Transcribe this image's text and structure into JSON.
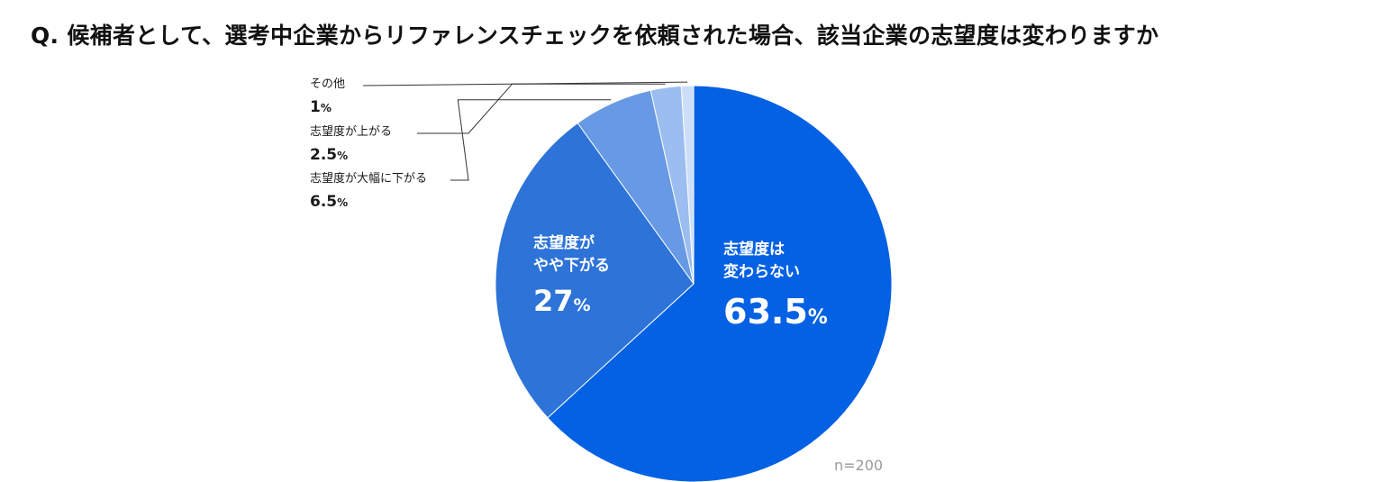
{
  "title": "Q. 候補者として、選考中企業からリファレンスチェックを依頼された場合、該当企業の志望度は変わりますか",
  "note": "n=200",
  "chart_data": {
    "type": "pie",
    "title": "Q. 候補者として、選考中企業からリファレンスチェックを依頼された場合、該当企業の志望度は変わりますか",
    "start": "12 o'clock",
    "direction": "clockwise",
    "legend": "none (direct labels)",
    "unit": "%",
    "slices": [
      {
        "id": "s4",
        "label_lines": [
          "志望度は",
          "変わらない"
        ],
        "label": "志望度は変わらない",
        "value": 63.5,
        "value_text": "63.5",
        "color": "#0461e3"
      },
      {
        "id": "s3",
        "label_lines": [
          "志望度が",
          "やや下がる"
        ],
        "label": "志望度がやや下がる",
        "value": 27,
        "value_text": "27",
        "color": "#2d73d8"
      },
      {
        "id": "s2",
        "label": "志望度が大幅に下がる",
        "value": 6.5,
        "value_text": "6.5",
        "color": "#6799e5"
      },
      {
        "id": "s1",
        "label": "志望度が上がる",
        "value": 2.5,
        "value_text": "2.5",
        "color": "#9bbdf0"
      },
      {
        "id": "s0",
        "label": "その他",
        "value": 1,
        "value_text": "1",
        "color": "#cddef9"
      }
    ],
    "percent_sign": "%",
    "leader_line_color": "#333333"
  }
}
